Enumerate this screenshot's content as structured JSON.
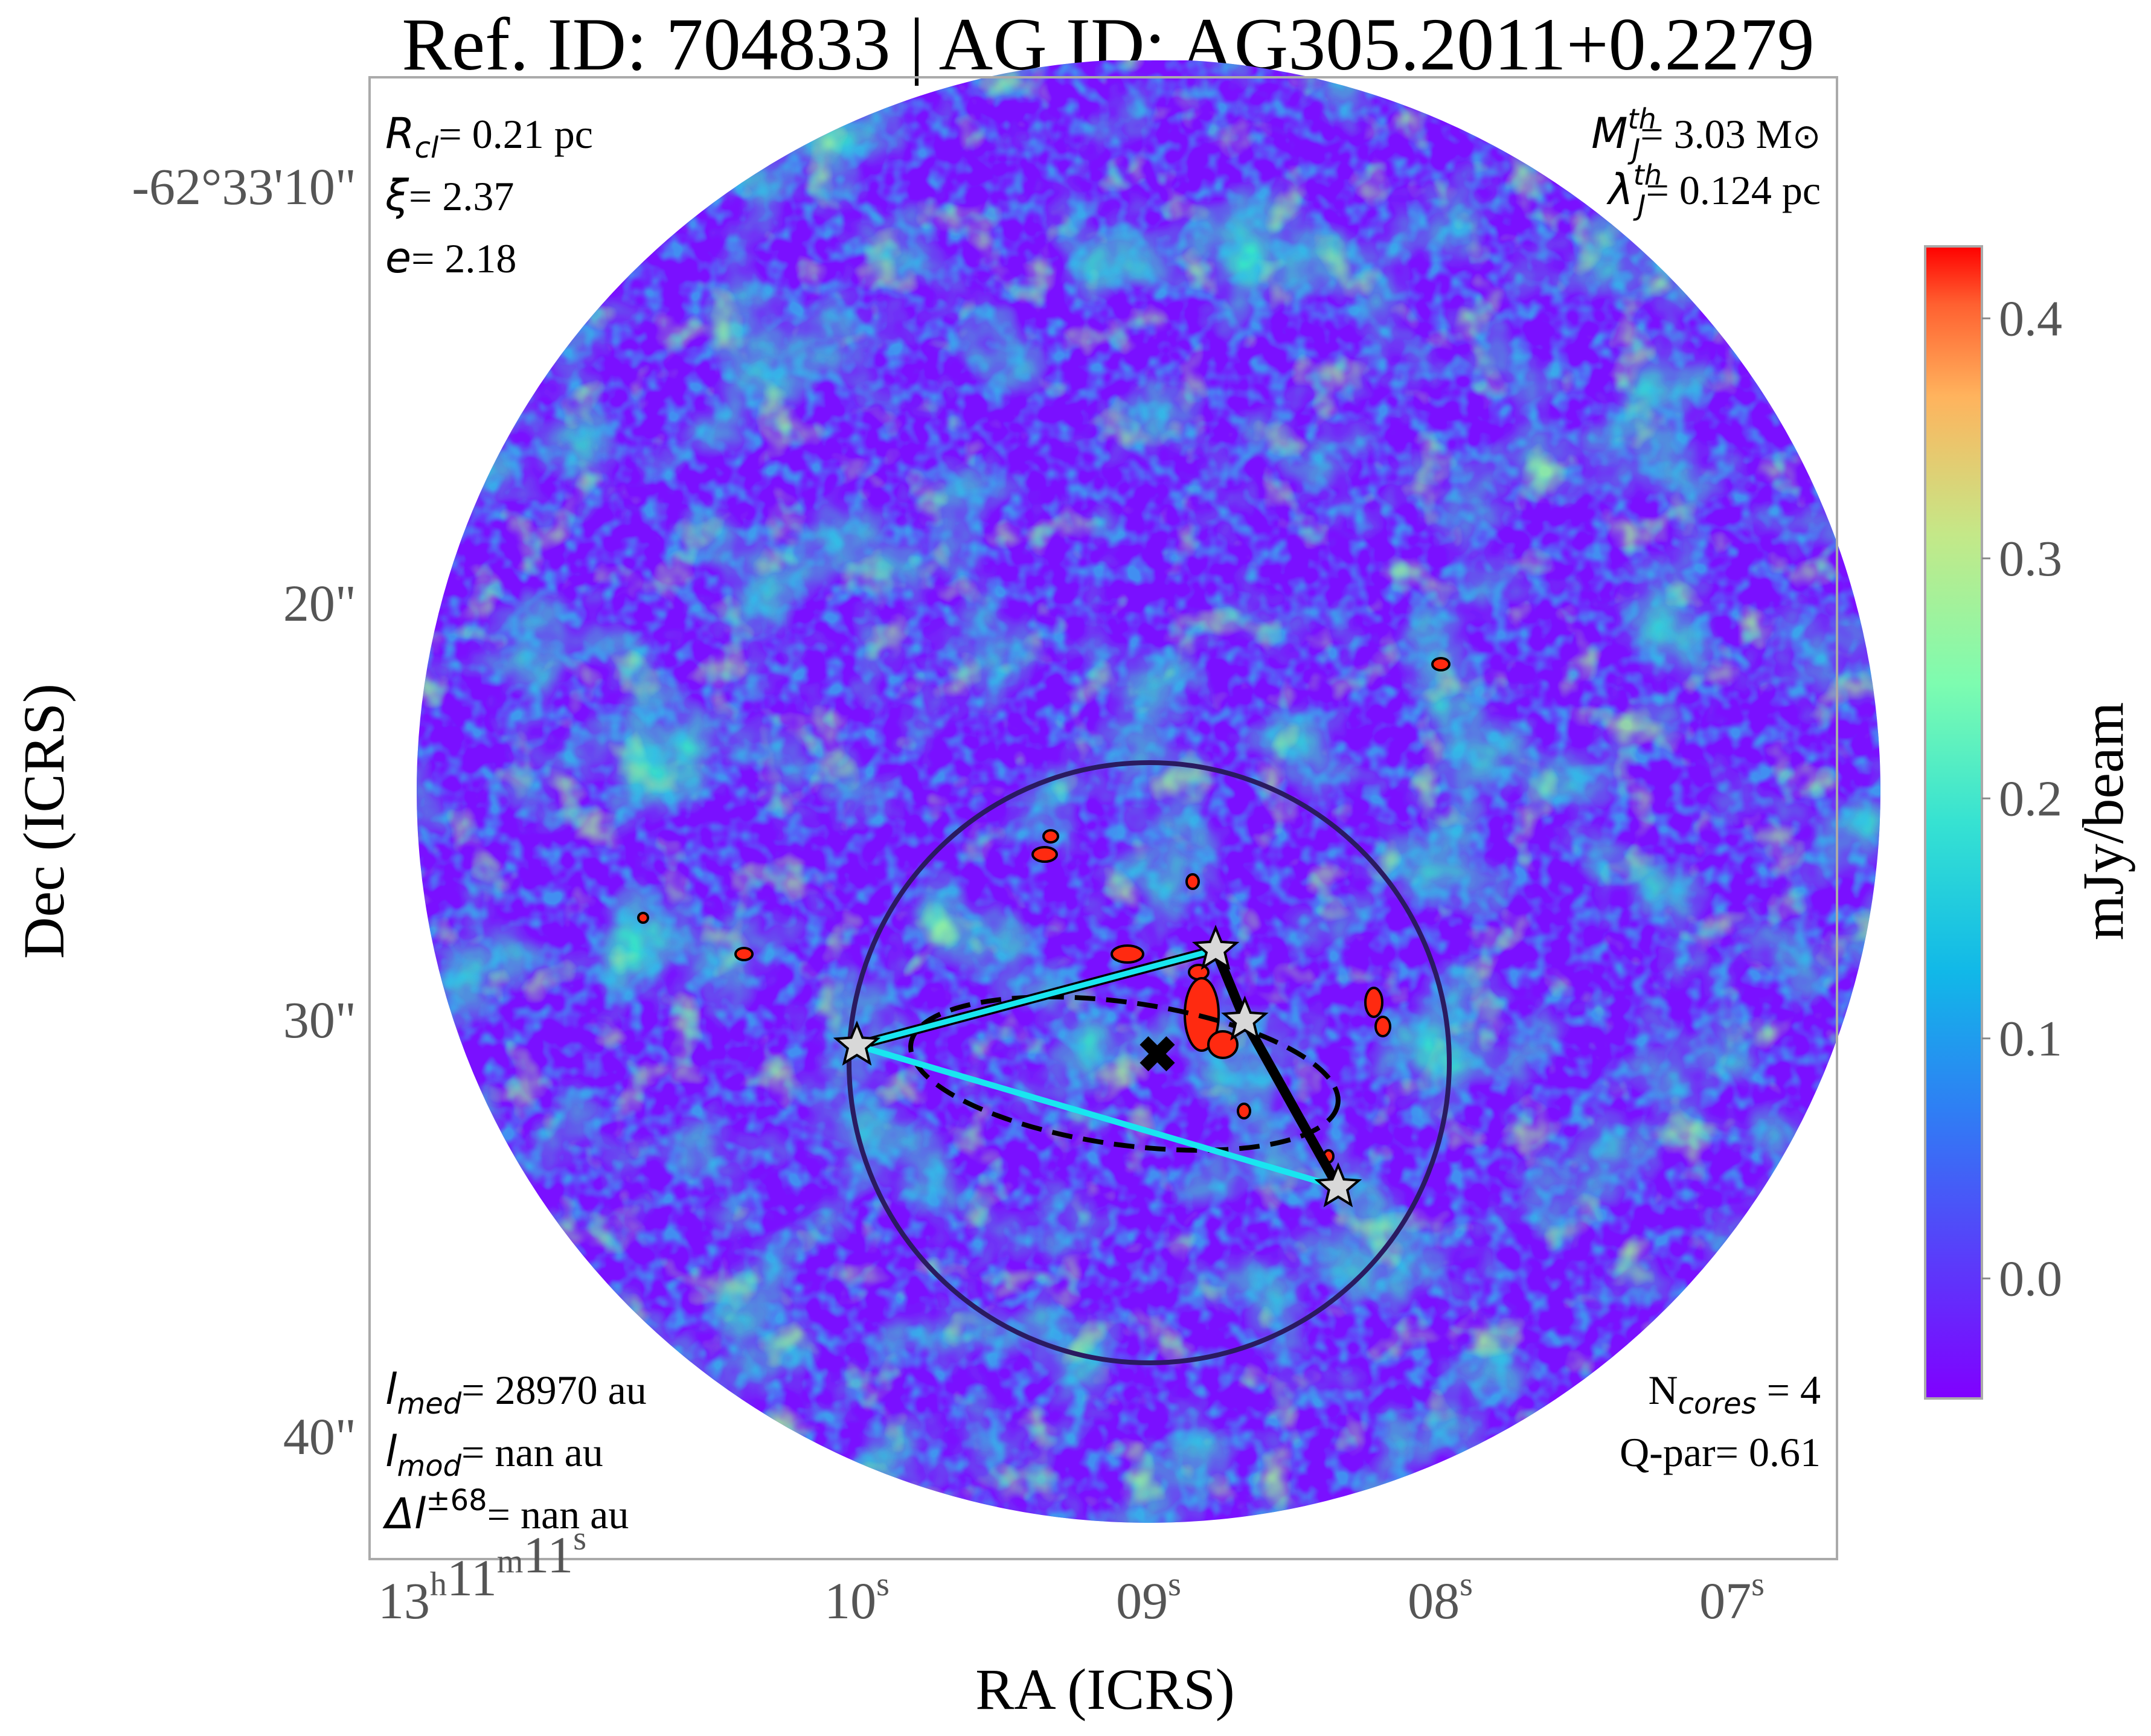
{
  "chart_data": {
    "type": "heatmap",
    "title": "Ref. ID: 704833 | AG ID: AG305.2011+0.2279",
    "xlabel": "RA (ICRS)",
    "ylabel": "Dec (ICRS)",
    "colorbar_label": "mJy/beam",
    "colormap": "rainbow",
    "clim": [
      -0.05,
      0.43
    ],
    "x_tick_labels": [
      {
        "h": "13",
        "hs": "h",
        "m": "11",
        "ms": "m",
        "s": "11",
        "ss": "s"
      },
      {
        "s": "10",
        "ss": "s"
      },
      {
        "s": "09",
        "ss": "s"
      },
      {
        "s": "08",
        "ss": "s"
      },
      {
        "s": "07",
        "ss": "s"
      }
    ],
    "y_tick_labels": [
      "-62°33'10\"",
      "20\"",
      "30\"",
      "40\""
    ],
    "colorbar_ticks": [
      "0.4",
      "0.3",
      "0.2",
      "0.1",
      "0.0"
    ],
    "colorbar_tick_values": [
      0.4,
      0.3,
      0.2,
      0.1,
      0.0
    ],
    "annotations": {
      "top_left": [
        {
          "sym": "R",
          "sub": "cl",
          "text": "= 0.21 pc"
        },
        {
          "sym": "ξ",
          "sub": "",
          "text": "= 2.37"
        },
        {
          "sym": "e",
          "sub": "",
          "text": "= 2.18"
        }
      ],
      "top_right": [
        {
          "sym": "M",
          "sup": "th",
          "sub": "J",
          "text": "= 3.03 M",
          "unit_sym": "⊙"
        },
        {
          "sym": "λ",
          "sup": "th",
          "sub": "J",
          "text": "= 0.124 pc",
          "unit_sym": ""
        }
      ],
      "bottom_left": [
        {
          "sym": "l",
          "sub": "med",
          "sup": "",
          "text": "= 28970 au"
        },
        {
          "sym": "l",
          "sub": "mod",
          "sup": "",
          "text": "= nan au"
        },
        {
          "sym": "Δl",
          "sub": "",
          "sup": "±68",
          "text": "= nan au"
        }
      ],
      "bottom_right": [
        {
          "pre": "N",
          "sub": "cores",
          "text": " = 4"
        },
        {
          "pre": "Q-par",
          "sub": "",
          "text": "= 0.61"
        }
      ]
    },
    "cores": [
      {
        "name": "core-1",
        "ra_s": 10.0,
        "dec_arcsec": 30.6
      },
      {
        "name": "core-2",
        "ra_s": 8.77,
        "dec_arcsec": 28.3
      },
      {
        "name": "core-3",
        "ra_s": 8.67,
        "dec_arcsec": 30.0
      },
      {
        "name": "core-4",
        "ra_s": 8.35,
        "dec_arcsec": 34.0
      }
    ],
    "mst_edges": [
      {
        "from": "core-1",
        "to": "core-2",
        "style": "cyan-outlined"
      },
      {
        "from": "core-2",
        "to": "core-3",
        "style": "black"
      },
      {
        "from": "core-3",
        "to": "core-4",
        "style": "black"
      },
      {
        "from": "core-1",
        "to": "core-4",
        "style": "cyan"
      }
    ],
    "clump_center": {
      "ra_s": 8.97,
      "dec_arcsec": 30.8
    },
    "colors": {
      "frame": "#aaaaaa",
      "tick_text": "#555555",
      "cyan_edge": "#19e6f0",
      "big_circle": "#2a1a60",
      "background_low": "#7a10ff",
      "contour": "#000000"
    }
  }
}
